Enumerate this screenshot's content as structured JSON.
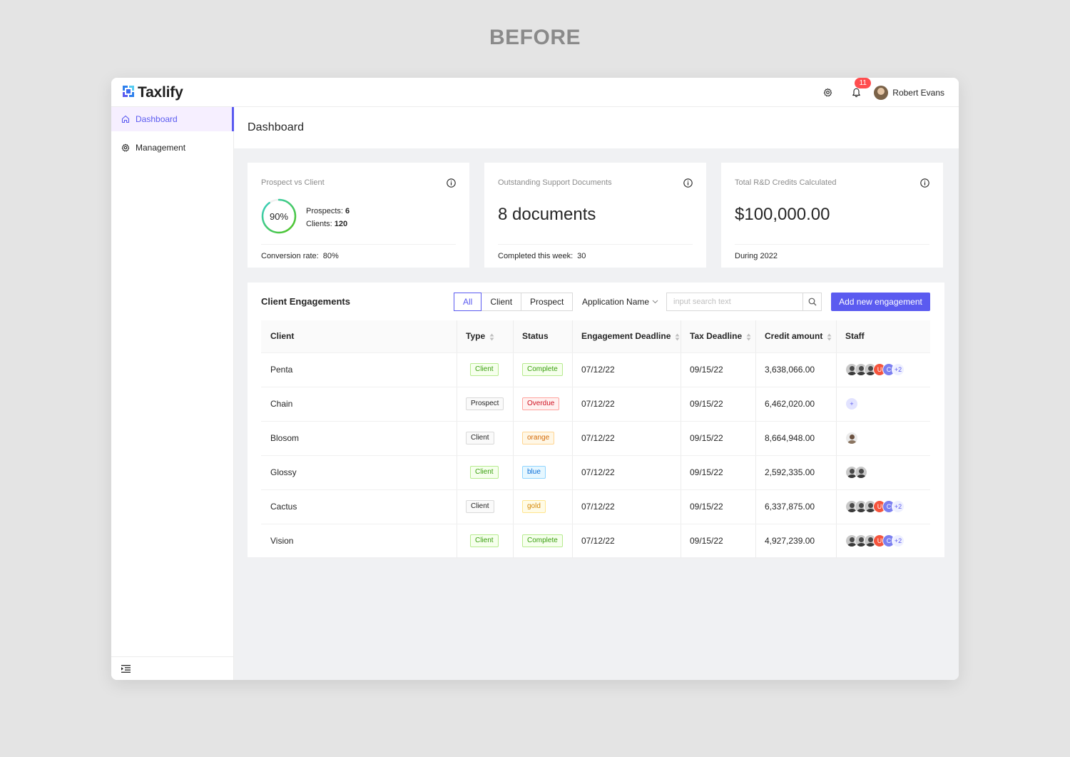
{
  "caption": "BEFORE",
  "app": {
    "name": "Taxlify"
  },
  "topbar": {
    "notification_count": "11",
    "user_name": "Robert Evans"
  },
  "sidebar": {
    "items": [
      {
        "label": "Dashboard",
        "icon": "home-icon",
        "active": true
      },
      {
        "label": "Management",
        "icon": "gear-icon",
        "active": false
      }
    ]
  },
  "page": {
    "title": "Dashboard"
  },
  "cards": {
    "prospect": {
      "title": "Prospect vs Client",
      "percent_label": "90%",
      "percent": 90,
      "prospects_label": "Prospects:",
      "prospects_value": "6",
      "clients_label": "Clients:",
      "clients_value": "120",
      "footer_label": "Conversion rate:",
      "footer_value": "80%"
    },
    "documents": {
      "title": "Outstanding Support Documents",
      "value": "8 documents",
      "footer_label": "Completed this week:",
      "footer_value": "30"
    },
    "credits": {
      "title": "Total R&D Credits Calculated",
      "value": "$100,000.00",
      "footer_label": "During 2022"
    }
  },
  "engagements": {
    "title": "Client Engagements",
    "filters": [
      "All",
      "Client",
      "Prospect"
    ],
    "active_filter": "All",
    "app_name_dropdown": "Application Name",
    "search_placeholder": "input search text",
    "add_button": "Add new engagement",
    "columns": [
      "Client",
      "Type",
      "Status",
      "Engagement Deadline",
      "Tax Deadline",
      "Credit amount",
      "Staff"
    ],
    "rows": [
      {
        "client": "Penta",
        "type": "Client",
        "type_style": "green",
        "status": "Complete",
        "status_color": "green",
        "engagement_deadline": "07/12/22",
        "tax_deadline": "09/15/22",
        "credit": "3,638,066.00",
        "staff": [
          "photo",
          "photo",
          "photo",
          "U",
          "C"
        ],
        "staff_more": "+2"
      },
      {
        "client": "Chain",
        "type": "Prospect",
        "type_style": "grey",
        "status": "Overdue",
        "status_color": "red",
        "engagement_deadline": "07/12/22",
        "tax_deadline": "09/15/22",
        "credit": "6,462,020.00",
        "staff": [
          "plus"
        ],
        "staff_more": ""
      },
      {
        "client": "Blosom",
        "type": "Client",
        "type_style": "grey",
        "status": "orange",
        "status_color": "orange",
        "engagement_deadline": "07/12/22",
        "tax_deadline": "09/15/22",
        "credit": "8,664,948.00",
        "staff": [
          "light"
        ],
        "staff_more": ""
      },
      {
        "client": "Glossy",
        "type": "Client",
        "type_style": "green",
        "status": "blue",
        "status_color": "blue",
        "engagement_deadline": "07/12/22",
        "tax_deadline": "09/15/22",
        "credit": "2,592,335.00",
        "staff": [
          "photo",
          "photo"
        ],
        "staff_more": ""
      },
      {
        "client": "Cactus",
        "type": "Client",
        "type_style": "grey",
        "status": "gold",
        "status_color": "gold",
        "engagement_deadline": "07/12/22",
        "tax_deadline": "09/15/22",
        "credit": "6,337,875.00",
        "staff": [
          "photo",
          "photo",
          "photo",
          "U",
          "C"
        ],
        "staff_more": "+2"
      },
      {
        "client": "Vision",
        "type": "Client",
        "type_style": "green",
        "status": "Complete",
        "status_color": "green",
        "engagement_deadline": "07/12/22",
        "tax_deadline": "09/15/22",
        "credit": "4,927,239.00",
        "staff": [
          "photo",
          "photo",
          "photo",
          "U",
          "C"
        ],
        "staff_more": "+2"
      }
    ]
  },
  "colors": {
    "accent": "#5b5bf0",
    "badge": "#ff4d4f",
    "ring_start": "#52c41a",
    "ring_end": "#36cfc9"
  }
}
